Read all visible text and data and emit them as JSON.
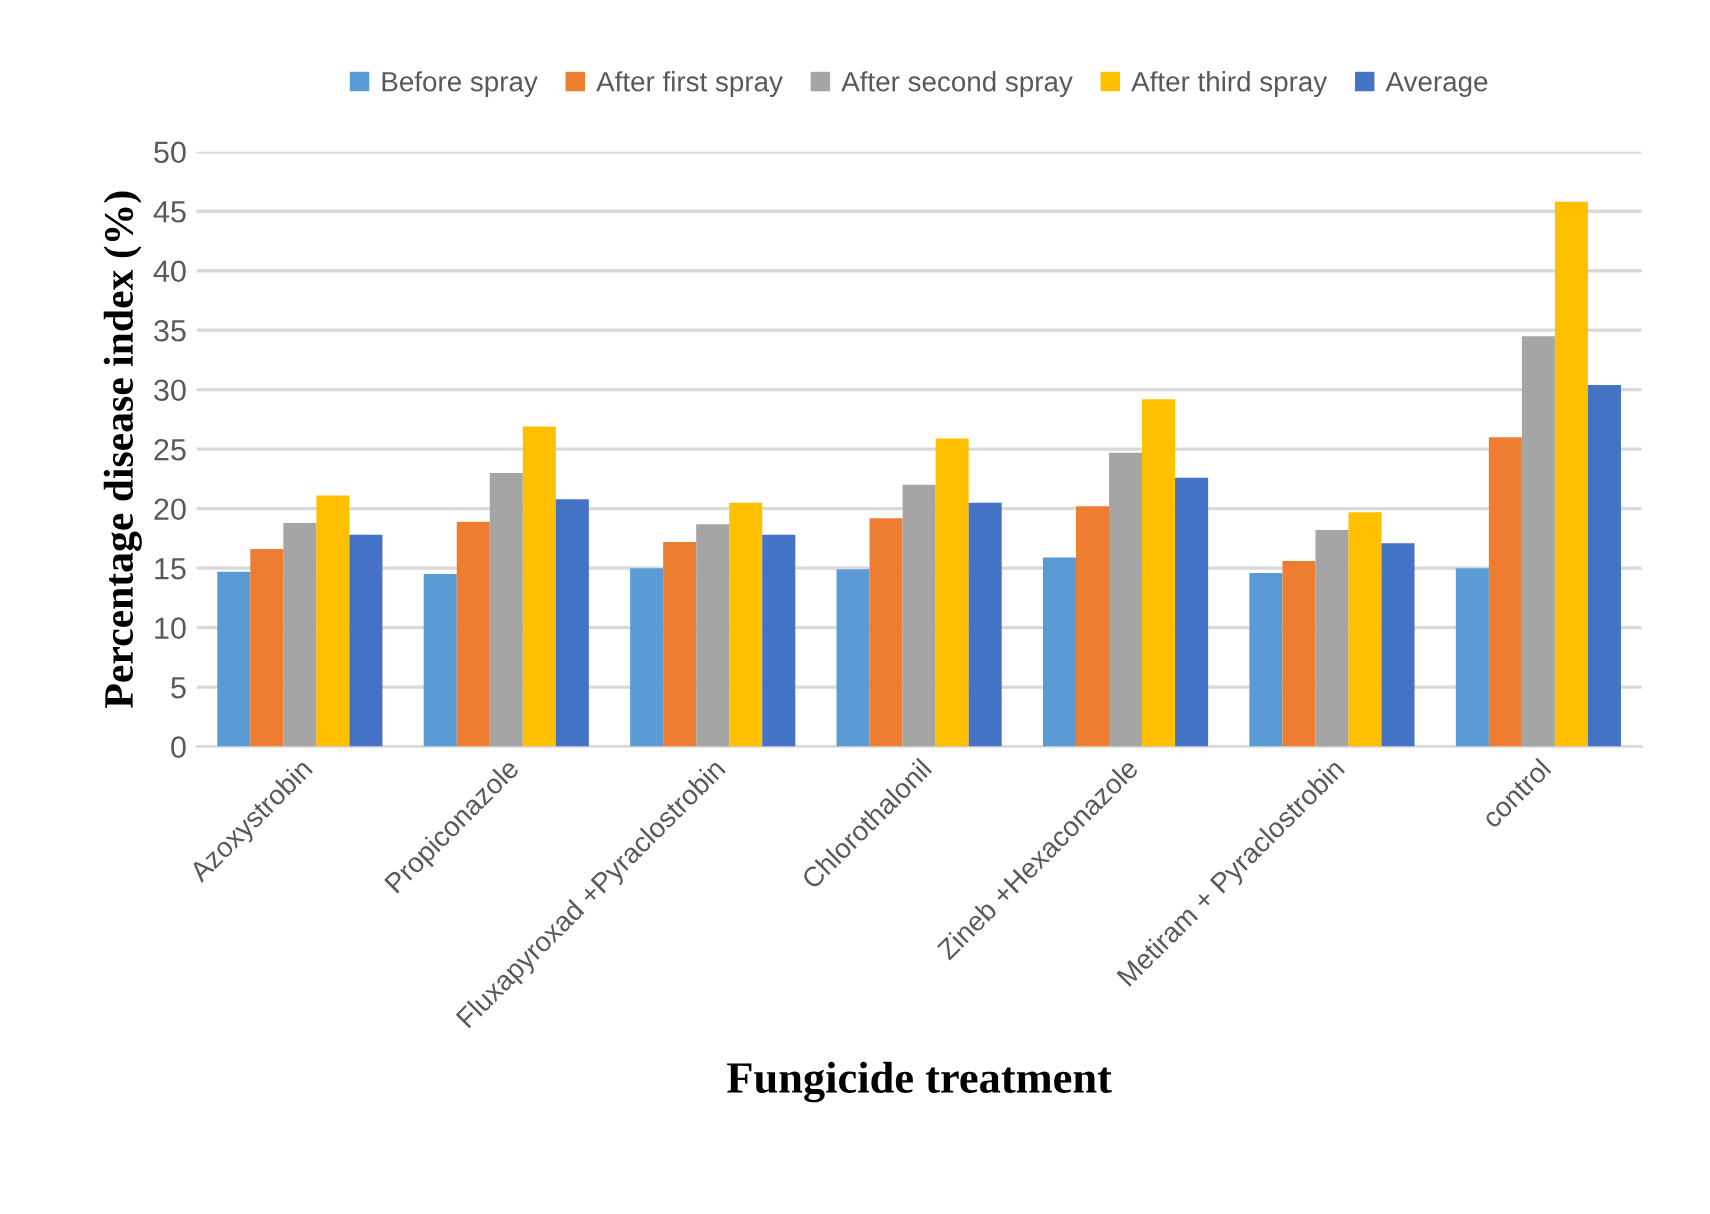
{
  "chart_data": {
    "type": "bar",
    "xlabel": "Fungicide treatment",
    "ylabel": "Percentage disease index (%)",
    "categories": [
      "Azoxystrobin",
      "Propiconazole",
      "Fluxapyroxad +Pyraclostrobin",
      "Chlorothalonil",
      "Zineb +Hexaconazole",
      "Metiram + Pyraclostrobin",
      "control"
    ],
    "series": [
      {
        "name": "Before spray",
        "color": "#5b9bd5",
        "values": [
          14.7,
          14.5,
          15.0,
          14.9,
          15.9,
          14.6,
          15.0
        ]
      },
      {
        "name": "After first spray",
        "color": "#ed7d31",
        "values": [
          16.6,
          18.9,
          17.2,
          19.2,
          20.2,
          15.6,
          26.0
        ]
      },
      {
        "name": "After second spray",
        "color": "#a5a5a5",
        "values": [
          18.8,
          23.0,
          18.7,
          22.0,
          24.7,
          18.2,
          34.5
        ]
      },
      {
        "name": "After third spray",
        "color": "#ffc000",
        "values": [
          21.1,
          26.9,
          20.5,
          25.9,
          29.2,
          19.7,
          45.8
        ]
      },
      {
        "name": "Average",
        "color": "#4472c4",
        "values": [
          17.8,
          20.8,
          17.8,
          20.5,
          22.6,
          17.1,
          30.4
        ]
      }
    ],
    "ylim": [
      0,
      50
    ],
    "yticks": [
      0,
      5,
      10,
      15,
      20,
      25,
      30,
      35,
      40,
      45,
      50
    ],
    "grid": "y",
    "legend": "top"
  }
}
